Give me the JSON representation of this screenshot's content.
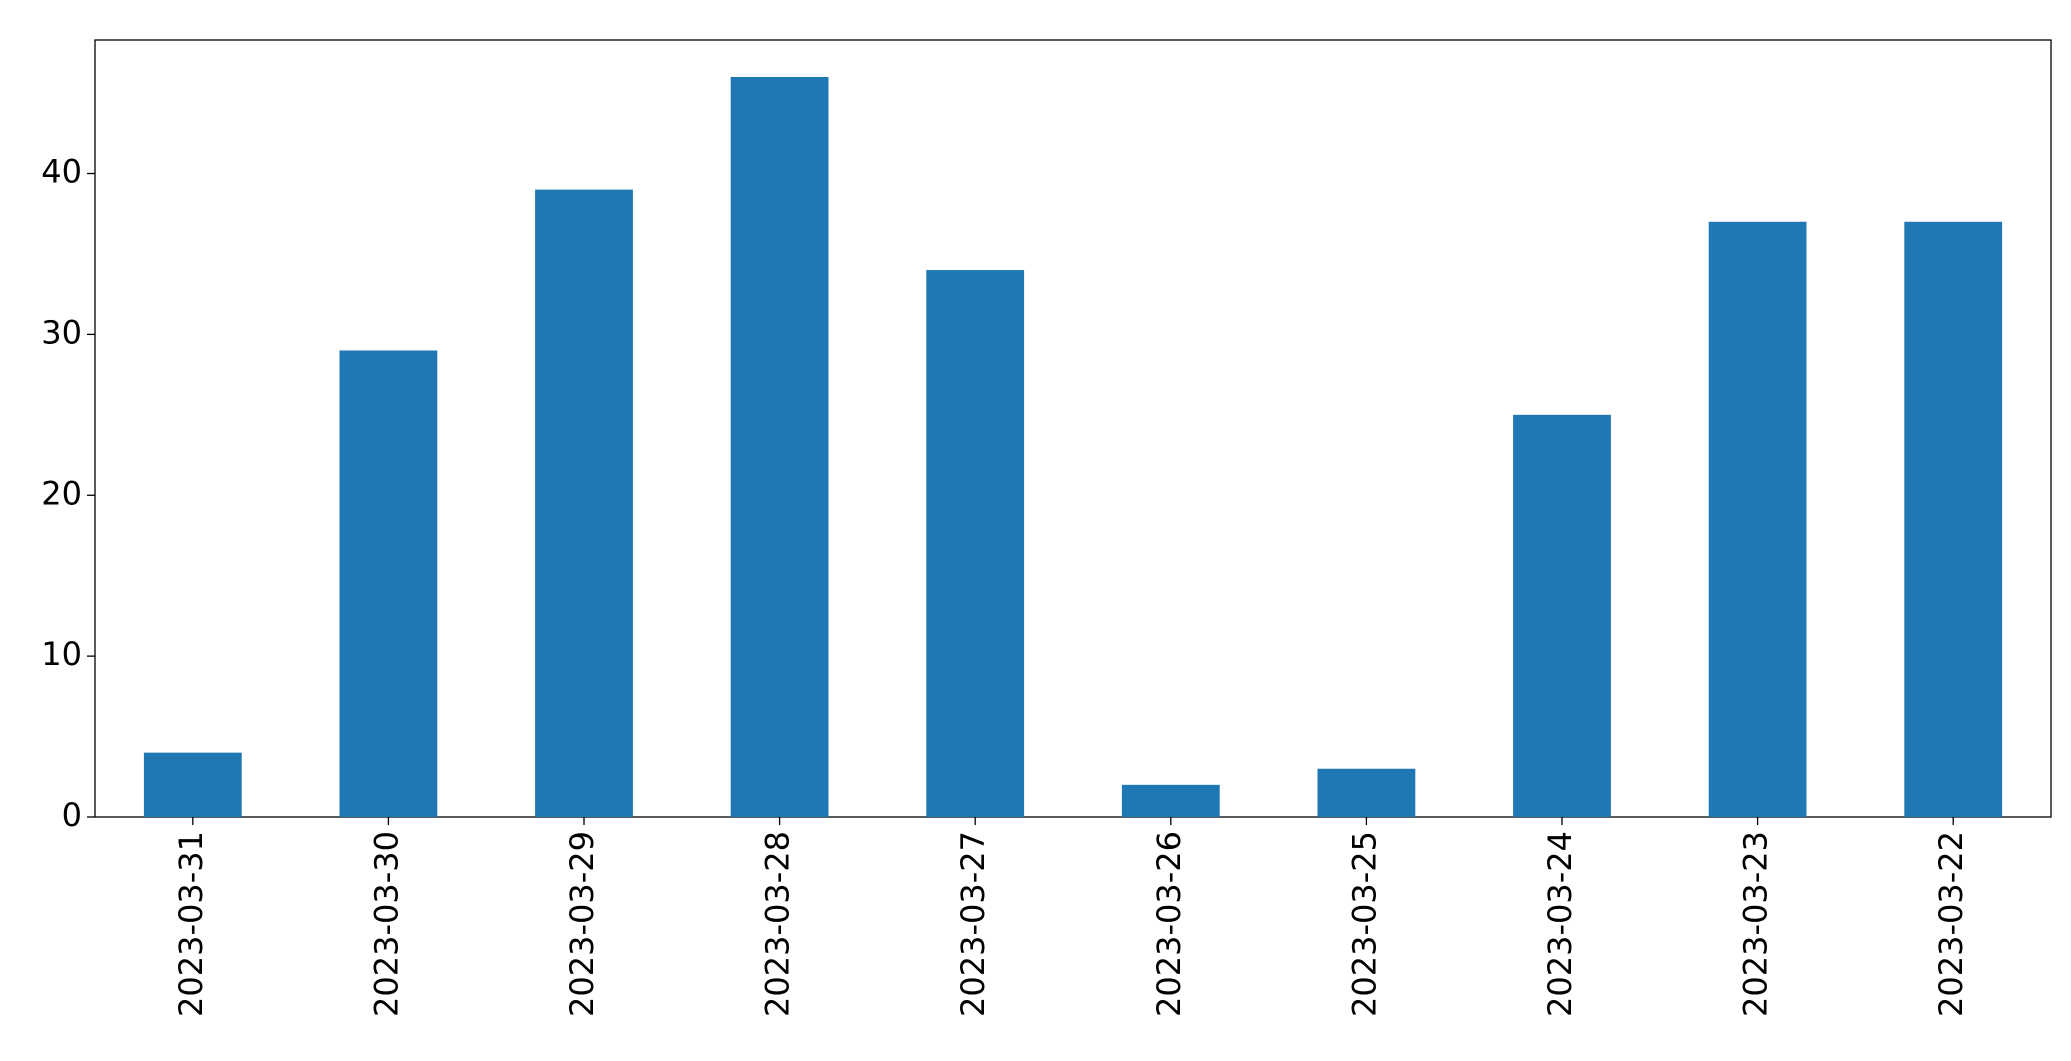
{
  "chart_data": {
    "type": "bar",
    "categories": [
      "2023-03-31",
      "2023-03-30",
      "2023-03-29",
      "2023-03-28",
      "2023-03-27",
      "2023-03-26",
      "2023-03-25",
      "2023-03-24",
      "2023-03-23",
      "2023-03-22"
    ],
    "values": [
      4,
      29,
      39,
      46,
      34,
      2,
      3,
      25,
      37,
      37
    ],
    "color": "#1f77b4",
    "ylim": [
      0,
      48.3
    ],
    "yticks": [
      0,
      10,
      20,
      30,
      40
    ],
    "grid": false
  }
}
